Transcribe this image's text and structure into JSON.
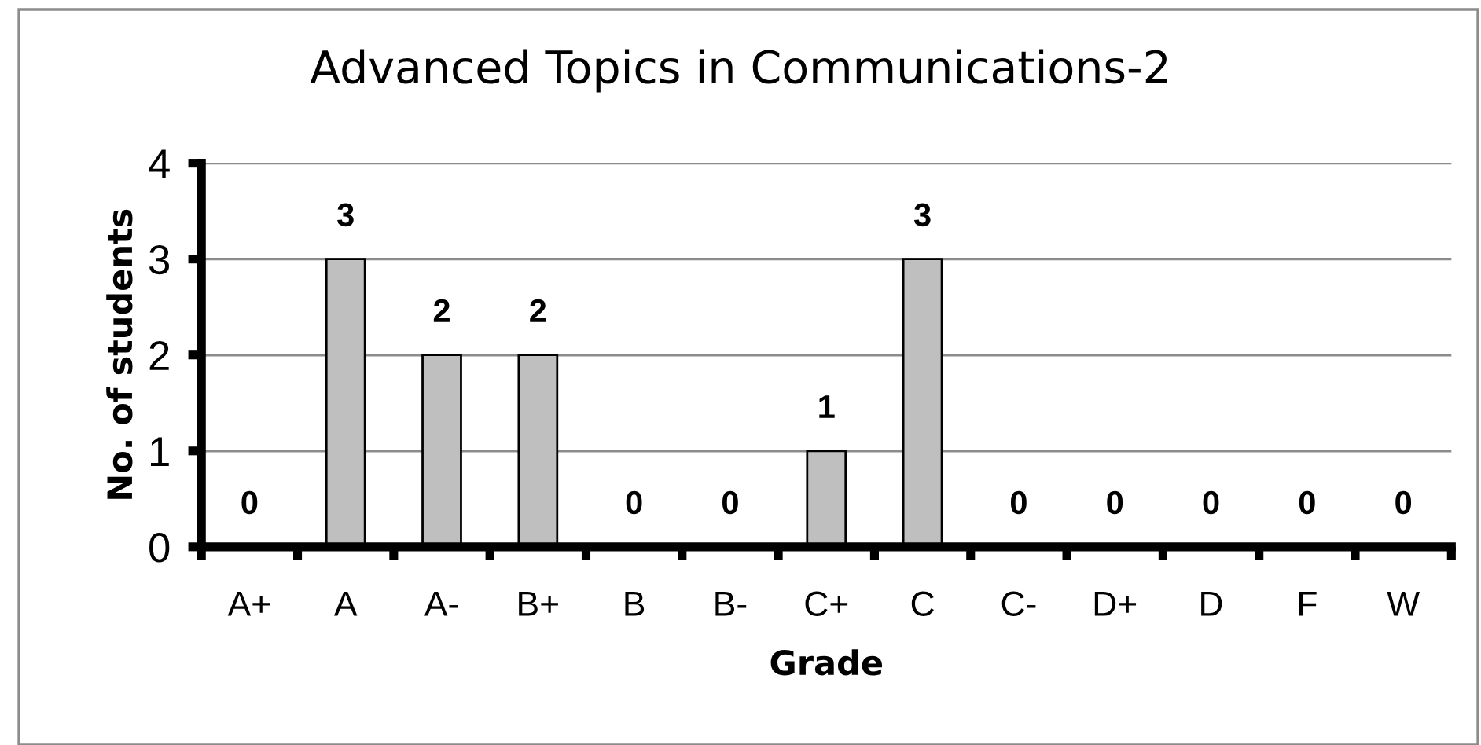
{
  "chart_data": {
    "type": "bar",
    "title": "Advanced Topics in Communications-2",
    "xlabel": "Grade",
    "ylabel": "No. of students",
    "categories": [
      "A+",
      "A",
      "A-",
      "B+",
      "B",
      "B-",
      "C+",
      "C",
      "C-",
      "D+",
      "D",
      "F",
      "W"
    ],
    "values": [
      0,
      3,
      2,
      2,
      0,
      0,
      1,
      3,
      0,
      0,
      0,
      0,
      0
    ],
    "color": "#bfbfbf",
    "ylim": [
      0,
      4
    ],
    "yticks": [
      0,
      1,
      2,
      3,
      4
    ],
    "grid": "y",
    "data_labels": true
  }
}
